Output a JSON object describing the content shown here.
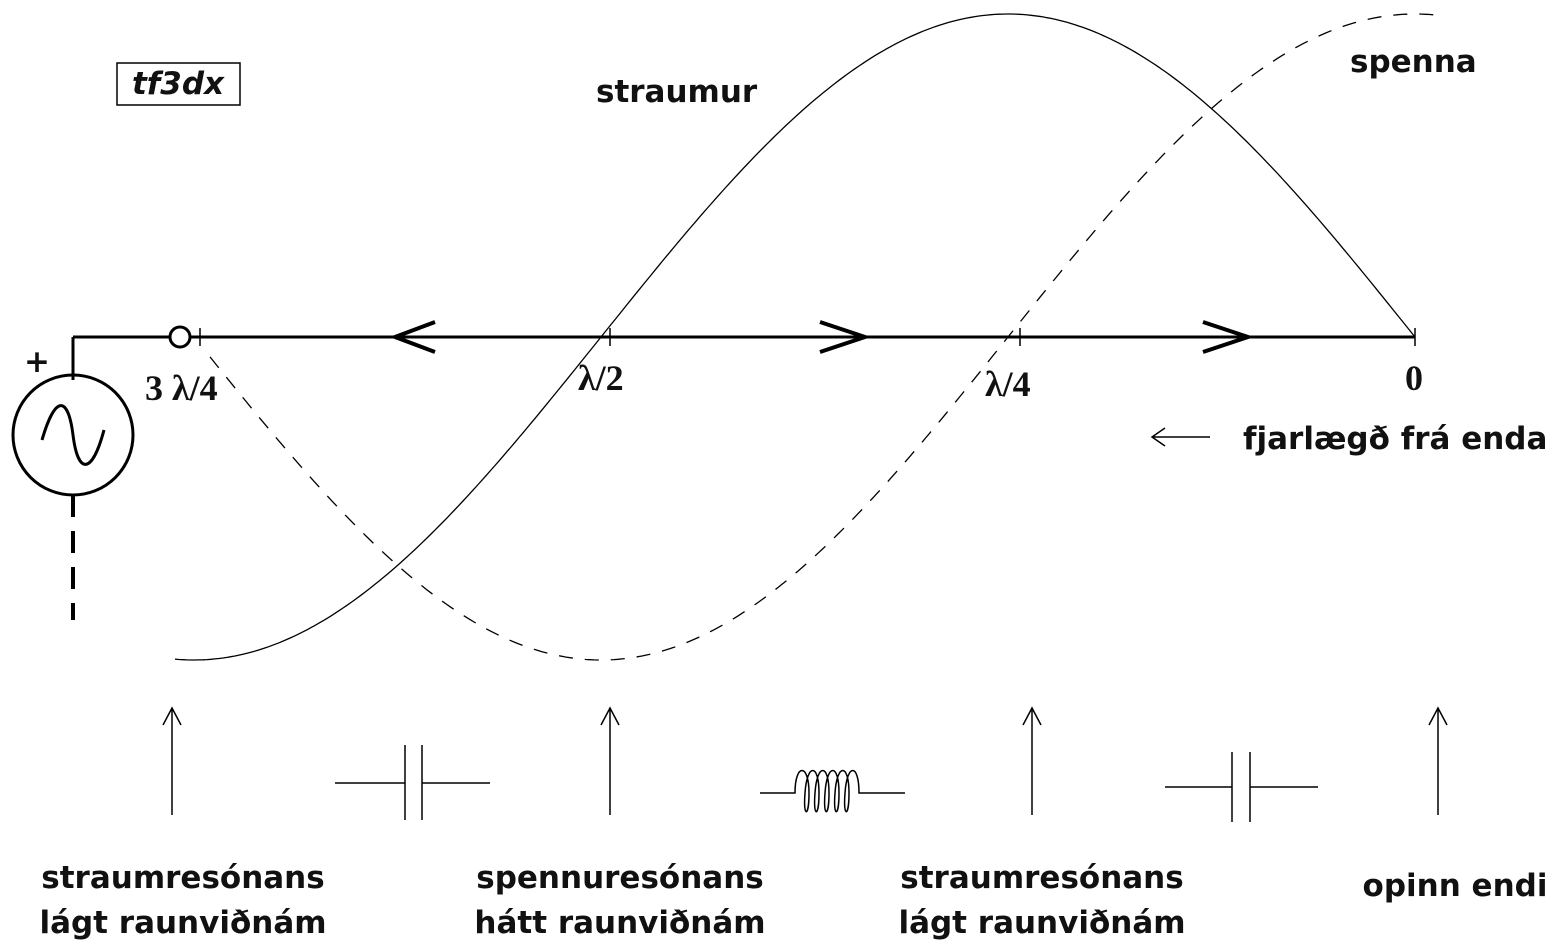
{
  "badge": "tf3dx",
  "curves": {
    "current": "straumur",
    "voltage": "spenna"
  },
  "axis_labels": [
    "3 λ/4",
    "λ/2",
    "λ/4",
    "0"
  ],
  "direction_label": "fjarlægð frá enda",
  "source_polarity": "+",
  "points": [
    {
      "line1": "straumresónans",
      "line2": "lágt raunviðnám"
    },
    {
      "line1": "spennuresónans",
      "line2": "hátt raunviðnám"
    },
    {
      "line1": "straumresónans",
      "line2": "lágt raunviðnám"
    },
    {
      "line1": "opinn endi"
    }
  ]
}
